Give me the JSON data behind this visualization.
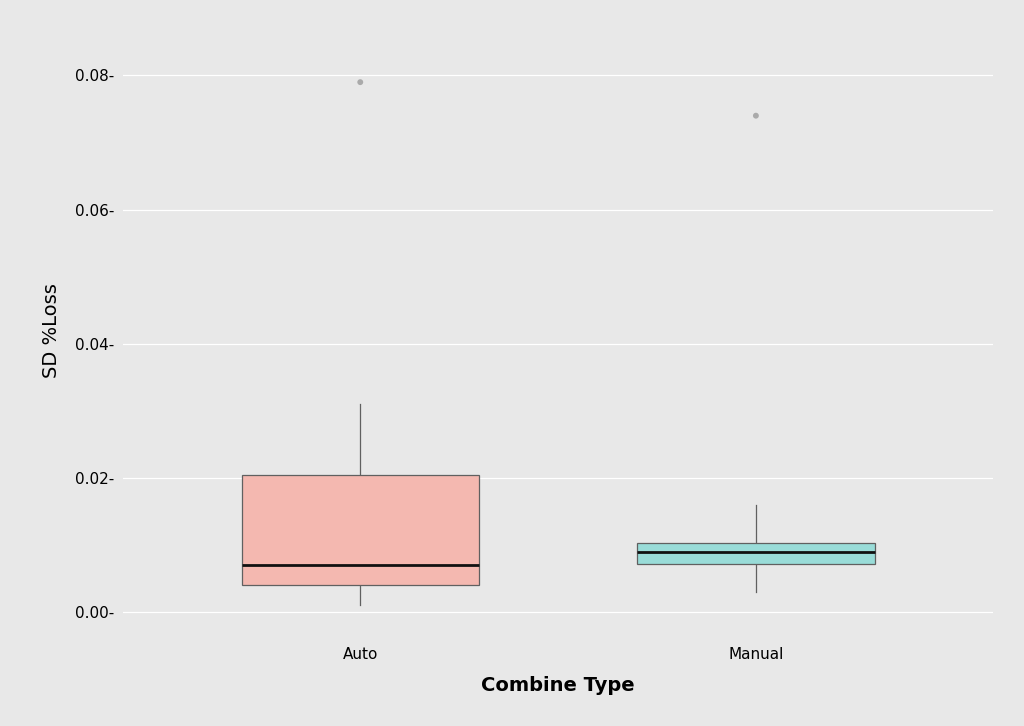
{
  "title": "",
  "xlabel": "Combine Type",
  "ylabel": "SD %Loss",
  "background_color": "#e8e8e8",
  "ylim": [
    -0.004,
    0.088
  ],
  "yticks": [
    0.0,
    0.02,
    0.04,
    0.06,
    0.08
  ],
  "categories": [
    "Auto",
    "Manual"
  ],
  "boxes": [
    {
      "label": "Auto",
      "q1": 0.004,
      "median": 0.007,
      "q3": 0.0205,
      "whisker_low": 0.001,
      "whisker_high": 0.031,
      "outliers": [
        0.079
      ],
      "color": "#f4b8b0",
      "edge_color": "#606060"
    },
    {
      "label": "Manual",
      "q1": 0.0072,
      "median": 0.009,
      "q3": 0.0103,
      "whisker_low": 0.003,
      "whisker_high": 0.016,
      "outliers": [
        0.074
      ],
      "color": "#99dcd8",
      "edge_color": "#606060"
    }
  ],
  "box_width": 0.6,
  "whisker_color": "#606060",
  "median_color": "#111111",
  "outlier_color": "#aaaaaa",
  "outlier_size": 18,
  "grid_color": "#ffffff",
  "axis_label_fontsize": 14,
  "tick_fontsize": 11,
  "x_positions": [
    1,
    2
  ],
  "xlim": [
    0.4,
    2.6
  ]
}
